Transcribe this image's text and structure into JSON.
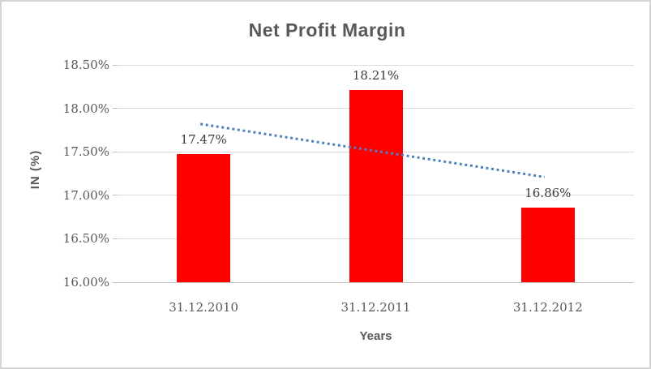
{
  "window": {
    "background": "#ffffff",
    "border_color": "#d5d5d5"
  },
  "chart_data": {
    "type": "bar",
    "title": "Net Profit Margin",
    "xlabel": "Years",
    "ylabel": "IN (%)",
    "categories": [
      "31.12.2010",
      "31.12.2011",
      "31.12.2012"
    ],
    "values": [
      17.47,
      18.21,
      16.86
    ],
    "data_labels": [
      "17.47%",
      "18.21%",
      "16.86%"
    ],
    "ylim": [
      16.0,
      18.5
    ],
    "yticks": [
      {
        "label": "16.00%",
        "value": 16.0
      },
      {
        "label": "16.50%",
        "value": 16.5
      },
      {
        "label": "17.00%",
        "value": 17.0
      },
      {
        "label": "17.50%",
        "value": 17.5
      },
      {
        "label": "18.00%",
        "value": 18.0
      },
      {
        "label": "18.50%",
        "value": 18.5
      }
    ],
    "grid": true,
    "legend": "none",
    "bar_color": "#FF0000",
    "trendline": {
      "type": "linear",
      "style": "dotted",
      "color": "#4E81BD",
      "start_value": 17.82,
      "end_value": 17.21
    }
  }
}
